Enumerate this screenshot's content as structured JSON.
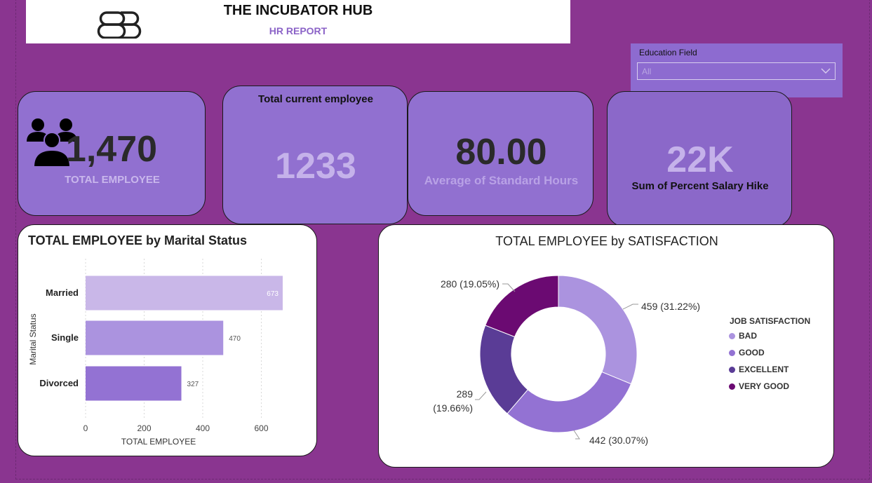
{
  "header": {
    "title": "THE INCUBATOR HUB",
    "subtitle": "HR REPORT",
    "logo_icon": "bb-logo-icon"
  },
  "slicer": {
    "label": "Education Field",
    "value": "All",
    "icon": "chevron-down-icon"
  },
  "cards": {
    "total_employee": {
      "value": "1,470",
      "label": "TOTAL EMPLOYEE",
      "icon": "people-icon"
    },
    "current_employee": {
      "title": "Total current employee",
      "value": "1233"
    },
    "standard_hours": {
      "value": "80.00",
      "label": "Average of Standard Hours"
    },
    "salary_hike": {
      "value": "22K",
      "label": "Sum of Percent Salary Hike"
    }
  },
  "colors": {
    "background": "#8a3590",
    "card": "#9170d0",
    "bar_married": "#c9b7e8",
    "bar_single": "#ab93df",
    "bar_divorced": "#9372d3",
    "bad": "#ab93df",
    "good": "#9372d3",
    "excellent": "#5a3c96",
    "very_good": "#6b0a72"
  },
  "chart_data": [
    {
      "type": "bar",
      "orientation": "horizontal",
      "title": "TOTAL EMPLOYEE by Marital Status",
      "xlabel": "TOTAL EMPLOYEE",
      "ylabel": "Marital Status",
      "categories": [
        "Married",
        "Single",
        "Divorced"
      ],
      "values": [
        673,
        470,
        327
      ],
      "data_labels": [
        "673",
        "470",
        "327"
      ],
      "xticks": [
        "0",
        "200",
        "400",
        "600"
      ],
      "xlim": [
        0,
        680
      ],
      "grid": true
    },
    {
      "type": "pie",
      "variant": "donut",
      "title": "TOTAL EMPLOYEE by SATISFACTION",
      "legend_title": "JOB SATISFACTION",
      "legend_position": "right",
      "slices": [
        {
          "name": "BAD",
          "value": 459,
          "label": "459 (31.22%)"
        },
        {
          "name": "GOOD",
          "value": 442,
          "label": "442 (30.07%)"
        },
        {
          "name": "EXCELLENT",
          "value": 289,
          "label_line1": "289",
          "label_line2": "(19.66%)"
        },
        {
          "name": "VERY GOOD",
          "value": 280,
          "label": "280 (19.05%)"
        }
      ]
    }
  ]
}
